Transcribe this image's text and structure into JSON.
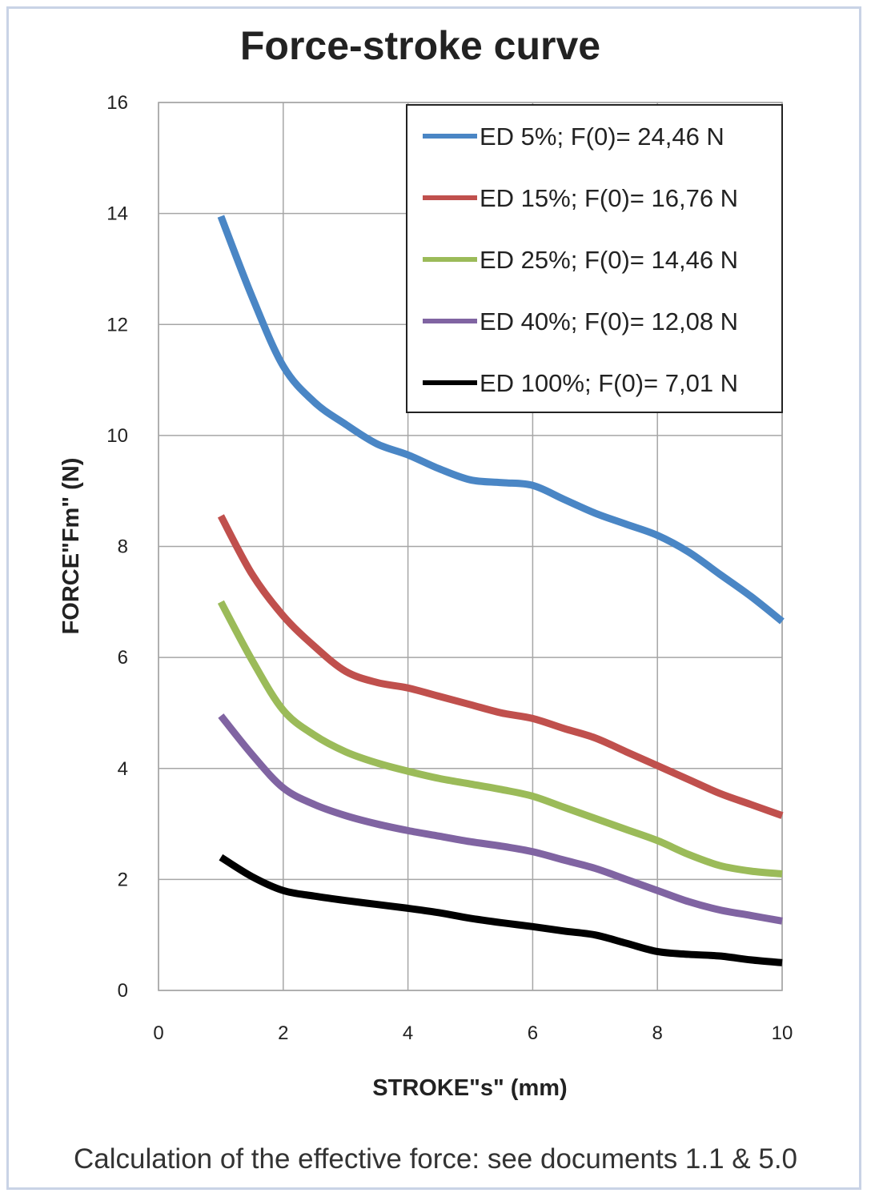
{
  "chart_data": {
    "type": "line",
    "title": "Force-stroke curve",
    "xlabel": "STROKE\"s\" (mm)",
    "ylabel": "FORCE\"Fm\" (N)",
    "xlim": [
      0,
      10
    ],
    "ylim": [
      0,
      16
    ],
    "xticks": [
      0,
      2,
      4,
      6,
      8,
      10
    ],
    "yticks": [
      0,
      2,
      4,
      6,
      8,
      10,
      12,
      14,
      16
    ],
    "grid": true,
    "legend_position": "top-right",
    "series": [
      {
        "name": "ED 5%; F(0)= 24,46 N",
        "color": "#4a86c5",
        "x": [
          1,
          1.5,
          2,
          2.5,
          3,
          3.5,
          4,
          4.5,
          5,
          5.5,
          6,
          6.5,
          7,
          7.5,
          8,
          8.5,
          9,
          9.5,
          10
        ],
        "y": [
          13.95,
          12.5,
          11.25,
          10.6,
          10.2,
          9.85,
          9.65,
          9.4,
          9.2,
          9.15,
          9.1,
          8.85,
          8.6,
          8.4,
          8.2,
          7.9,
          7.5,
          7.1,
          6.65
        ]
      },
      {
        "name": "ED 15%; F(0)= 16,76 N",
        "color": "#c0504d",
        "x": [
          1,
          1.5,
          2,
          2.5,
          3,
          3.5,
          4,
          4.5,
          5,
          5.5,
          6,
          6.5,
          7,
          7.5,
          8,
          8.5,
          9,
          9.5,
          10
        ],
        "y": [
          8.55,
          7.5,
          6.75,
          6.2,
          5.75,
          5.55,
          5.45,
          5.3,
          5.15,
          5.0,
          4.9,
          4.72,
          4.55,
          4.3,
          4.05,
          3.8,
          3.55,
          3.35,
          3.15
        ]
      },
      {
        "name": "ED 25%; F(0)= 14,46 N",
        "color": "#9bbb59",
        "x": [
          1,
          1.5,
          2,
          2.5,
          3,
          3.5,
          4,
          4.5,
          5,
          5.5,
          6,
          6.5,
          7,
          7.5,
          8,
          8.5,
          9,
          9.5,
          10
        ],
        "y": [
          7.0,
          5.95,
          5.05,
          4.6,
          4.3,
          4.1,
          3.95,
          3.82,
          3.72,
          3.62,
          3.5,
          3.3,
          3.1,
          2.9,
          2.7,
          2.45,
          2.25,
          2.15,
          2.1
        ]
      },
      {
        "name": "ED 40%; F(0)= 12,08 N",
        "color": "#8064a2",
        "x": [
          1,
          1.5,
          2,
          2.5,
          3,
          3.5,
          4,
          4.5,
          5,
          5.5,
          6,
          6.5,
          7,
          7.5,
          8,
          8.5,
          9,
          9.5,
          10
        ],
        "y": [
          4.95,
          4.25,
          3.65,
          3.35,
          3.15,
          3.0,
          2.88,
          2.78,
          2.68,
          2.6,
          2.5,
          2.35,
          2.2,
          2.0,
          1.8,
          1.6,
          1.45,
          1.35,
          1.25
        ]
      },
      {
        "name": "ED 100%; F(0)= 7,01 N",
        "color": "#000000",
        "x": [
          1,
          1.5,
          2,
          2.5,
          3,
          3.5,
          4,
          4.5,
          5,
          5.5,
          6,
          6.5,
          7,
          7.5,
          8,
          8.5,
          9,
          9.5,
          10
        ],
        "y": [
          2.4,
          2.05,
          1.8,
          1.7,
          1.62,
          1.55,
          1.48,
          1.4,
          1.3,
          1.22,
          1.15,
          1.07,
          1.0,
          0.85,
          0.7,
          0.65,
          0.62,
          0.55,
          0.5
        ]
      }
    ]
  },
  "footnote": "Calculation of the effective force: see documents 1.1 & 5.0"
}
